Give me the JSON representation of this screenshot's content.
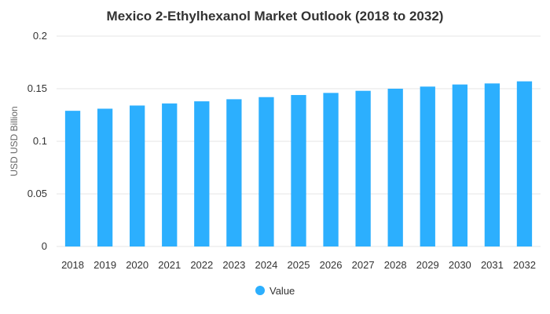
{
  "chart_data": {
    "type": "bar",
    "title": "Mexico 2-Ethylhexanol Market Outlook (2018 to 2032)",
    "xlabel": "",
    "ylabel": "USD USD Billion",
    "ylim": [
      0,
      0.2
    ],
    "yticks": [
      "0",
      "0.05",
      "0.1",
      "0.15",
      "0.2"
    ],
    "yticks_values": [
      0,
      0.05,
      0.1,
      0.15,
      0.2
    ],
    "grid": true,
    "legend_position": "bottom-center",
    "categories": [
      "2018",
      "2019",
      "2020",
      "2021",
      "2022",
      "2023",
      "2024",
      "2025",
      "2026",
      "2027",
      "2028",
      "2029",
      "2030",
      "2031",
      "2032"
    ],
    "series": [
      {
        "name": "Value",
        "color": "#2caffe",
        "values": [
          0.129,
          0.131,
          0.134,
          0.136,
          0.138,
          0.14,
          0.142,
          0.144,
          0.146,
          0.148,
          0.15,
          0.152,
          0.154,
          0.155,
          0.157
        ]
      }
    ]
  }
}
